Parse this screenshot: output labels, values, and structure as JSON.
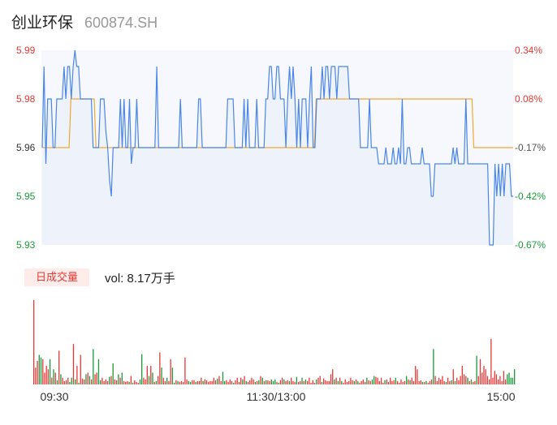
{
  "header": {
    "name": "创业环保",
    "code": "600874.SH"
  },
  "volume": {
    "badge_label": "日成交量",
    "text": "vol: 8.17万手"
  },
  "colors": {
    "price_line": "#4a86e8",
    "avg_line": "#f0a830",
    "up": "#e53935",
    "down": "#1a9a3a",
    "price_axis": "#e53935",
    "pct_up": "#e53935",
    "pct_flat": "#555555",
    "pct_down": "#1a9a3a"
  },
  "chart_data": [
    {
      "type": "line",
      "ylim": [
        5.93,
        5.99
      ],
      "y_tick_labels": [
        "5.99",
        "5.98",
        "5.96",
        "5.95",
        "5.93"
      ],
      "pct_tick_labels": [
        "0.34%",
        "0.08%",
        "-0.17%",
        "-0.42%",
        "-0.67%"
      ],
      "prev_close_marker": "5.96",
      "x_tick_labels": [
        "09:30",
        "11:30/13:00",
        "15:00"
      ],
      "series": [
        {
          "values": [
            5.96,
            5.985,
            5.955,
            5.975,
            5.975,
            5.975,
            5.96,
            5.96,
            5.975,
            5.975,
            5.975,
            5.975,
            5.985,
            5.975,
            5.985,
            5.985,
            5.975,
            5.985,
            5.99,
            5.985,
            5.985,
            5.975,
            5.975,
            5.975,
            5.975,
            5.975,
            5.975,
            5.975,
            5.96,
            5.96,
            5.96,
            5.96,
            5.975,
            5.975,
            5.975,
            5.965,
            5.96,
            5.95,
            5.945,
            5.96,
            5.96,
            5.96,
            5.96,
            5.975,
            5.96,
            5.975,
            5.96,
            5.96,
            5.975,
            5.955,
            5.96,
            5.96,
            5.975,
            5.96,
            5.96,
            5.96,
            5.96,
            5.96,
            5.96,
            5.96,
            5.96,
            5.96,
            5.96,
            5.985,
            5.96,
            5.96,
            5.96,
            5.96,
            5.96,
            5.96,
            5.96,
            5.96,
            5.96,
            5.96,
            5.96,
            5.96,
            5.975,
            5.96,
            5.96,
            5.96,
            5.96,
            5.96,
            5.96,
            5.96,
            5.96,
            5.96,
            5.975,
            5.975,
            5.96,
            5.96,
            5.96,
            5.96,
            5.96,
            5.96,
            5.96,
            5.96,
            5.96,
            5.96,
            5.96,
            5.96,
            5.96,
            5.96,
            5.975,
            5.975,
            5.975,
            5.975,
            5.96,
            5.96,
            5.96,
            5.96,
            5.96,
            5.975,
            5.96,
            5.975,
            5.96,
            5.96,
            5.96,
            5.96,
            5.975,
            5.96,
            5.96,
            5.96,
            5.96,
            5.975,
            5.975,
            5.985,
            5.985,
            5.975,
            5.975,
            5.985,
            5.985,
            5.975,
            5.975,
            5.975,
            5.96,
            5.975,
            5.985,
            5.975,
            5.985,
            5.975,
            5.96,
            5.975,
            5.96,
            5.975,
            5.975,
            5.975,
            5.96,
            5.975,
            5.985,
            5.96,
            5.96,
            5.975,
            5.975,
            5.975,
            5.985,
            5.975,
            5.985,
            5.985,
            5.975,
            5.985,
            5.985,
            5.985,
            5.975,
            5.985,
            5.985,
            5.985,
            5.985,
            5.985,
            5.985,
            5.975,
            5.975,
            5.975,
            5.975,
            5.975,
            5.975,
            5.96,
            5.96,
            5.96,
            5.96,
            5.96,
            5.975,
            5.96,
            5.96,
            5.96,
            5.96,
            5.955,
            5.955,
            5.955,
            5.955,
            5.96,
            5.955,
            5.955,
            5.955,
            5.96,
            5.955,
            5.955,
            5.96,
            5.955,
            5.975,
            5.955,
            5.955,
            5.96,
            5.96,
            5.955,
            5.955,
            5.955,
            5.955,
            5.955,
            5.955,
            5.96,
            5.955,
            5.955,
            5.955,
            5.955,
            5.945,
            5.945,
            5.955,
            5.955,
            5.955,
            5.955,
            5.955,
            5.955,
            5.955,
            5.955,
            5.955,
            5.955,
            5.96,
            5.955,
            5.96,
            5.955,
            5.955,
            5.955,
            5.955,
            5.975,
            5.955,
            5.955,
            5.955,
            5.955,
            5.955,
            5.955,
            5.955,
            5.955,
            5.955,
            5.955,
            5.955,
            5.955,
            5.93,
            5.93,
            5.93,
            5.955,
            5.945,
            5.955,
            5.945,
            5.955,
            5.945,
            5.955,
            5.955,
            5.955,
            5.945,
            5.945
          ]
        },
        {
          "values": [
            5.96,
            5.96,
            5.96,
            5.96,
            5.96,
            5.96,
            5.96,
            5.96,
            5.96,
            5.96,
            5.96,
            5.96,
            5.96,
            5.96,
            5.96,
            5.96,
            5.975,
            5.975,
            5.975,
            5.975,
            5.975,
            5.975,
            5.975,
            5.975,
            5.975,
            5.975,
            5.975,
            5.975,
            5.975,
            5.975,
            5.96,
            5.96,
            5.96,
            5.96,
            5.96,
            5.96,
            5.96,
            5.96,
            5.96,
            5.96,
            5.96,
            5.96,
            5.96,
            5.96,
            5.96,
            5.96,
            5.96,
            5.96,
            5.96,
            5.96,
            5.96,
            5.96,
            5.96,
            5.96,
            5.96,
            5.96,
            5.96,
            5.96,
            5.96,
            5.96,
            5.96,
            5.96,
            5.96,
            5.96,
            5.96,
            5.96,
            5.96,
            5.96,
            5.96,
            5.96,
            5.96,
            5.96,
            5.96,
            5.96,
            5.96,
            5.96,
            5.96,
            5.96,
            5.96,
            5.96,
            5.96,
            5.96,
            5.96,
            5.96,
            5.96,
            5.96,
            5.96,
            5.96,
            5.96,
            5.96,
            5.96,
            5.96,
            5.96,
            5.96,
            5.96,
            5.96,
            5.96,
            5.96,
            5.96,
            5.96,
            5.96,
            5.96,
            5.96,
            5.96,
            5.96,
            5.96,
            5.96,
            5.96,
            5.96,
            5.96,
            5.96,
            5.96,
            5.96,
            5.96,
            5.96,
            5.96,
            5.96,
            5.96,
            5.96,
            5.96,
            5.96,
            5.96,
            5.96,
            5.96,
            5.96,
            5.96,
            5.96,
            5.96,
            5.96,
            5.96,
            5.96,
            5.96,
            5.96,
            5.96,
            5.96,
            5.96,
            5.96,
            5.96,
            5.96,
            5.96,
            5.96,
            5.96,
            5.96,
            5.96,
            5.96,
            5.96,
            5.96,
            5.96,
            5.96,
            5.96,
            5.96,
            5.96,
            5.96,
            5.975,
            5.975,
            5.975,
            5.975,
            5.975,
            5.975,
            5.975,
            5.975,
            5.975,
            5.975,
            5.975,
            5.975,
            5.975,
            5.975,
            5.975,
            5.975,
            5.975,
            5.975,
            5.975,
            5.975,
            5.975,
            5.975,
            5.975,
            5.975,
            5.975,
            5.975,
            5.975,
            5.975,
            5.975,
            5.975,
            5.975,
            5.975,
            5.975,
            5.975,
            5.975,
            5.975,
            5.975,
            5.975,
            5.975,
            5.975,
            5.975,
            5.975,
            5.975,
            5.975,
            5.975,
            5.975,
            5.975,
            5.975,
            5.975,
            5.975,
            5.975,
            5.975,
            5.975,
            5.975,
            5.975,
            5.975,
            5.975,
            5.975,
            5.975,
            5.975,
            5.975,
            5.975,
            5.975,
            5.975,
            5.975,
            5.975,
            5.975,
            5.975,
            5.975,
            5.975,
            5.975,
            5.975,
            5.975,
            5.975,
            5.975,
            5.975,
            5.975,
            5.975,
            5.975,
            5.975,
            5.975,
            5.975,
            5.975,
            5.975,
            5.975,
            5.975,
            5.975,
            5.975,
            5.96,
            5.96,
            5.96,
            5.96,
            5.96,
            5.96,
            5.96,
            5.96,
            5.96,
            5.96,
            5.96,
            5.96,
            5.96,
            5.96,
            5.96,
            5.96,
            5.96,
            5.96,
            5.96,
            5.96,
            5.96,
            5.96,
            5.96
          ]
        }
      ]
    },
    {
      "type": "bar",
      "x_tick_labels": [
        "09:30",
        "11:30/13:00",
        "15:00"
      ],
      "bar_values": [
        100,
        20,
        28,
        35,
        32,
        30,
        14,
        22,
        18,
        30,
        8,
        18,
        14,
        5,
        40,
        12,
        8,
        4,
        5,
        8,
        3,
        8,
        48,
        6,
        22,
        2,
        35,
        7,
        6,
        12,
        14,
        10,
        6,
        42,
        12,
        14,
        30,
        5,
        8,
        4,
        6,
        4,
        9,
        10,
        25,
        6,
        5,
        12,
        8,
        14,
        4,
        3,
        4,
        3,
        10,
        2,
        5,
        3,
        2,
        6,
        36,
        8,
        6,
        22,
        10,
        22,
        14,
        3,
        4,
        10,
        38,
        20,
        8,
        4,
        8,
        4,
        30,
        20,
        2,
        5,
        4,
        3,
        4,
        3,
        32,
        6,
        4,
        3,
        5,
        5,
        3,
        4,
        4,
        8,
        4,
        6,
        5,
        3,
        4,
        4,
        8,
        5,
        7,
        10,
        4,
        15,
        4,
        5,
        3,
        6,
        4,
        2,
        5,
        8,
        3,
        8,
        6,
        10,
        4,
        3,
        5,
        8,
        6,
        3,
        4,
        5,
        10,
        8,
        4,
        5,
        5,
        4,
        6,
        4,
        6,
        3,
        2,
        5,
        8,
        6,
        4,
        5,
        4,
        8,
        4,
        3,
        9,
        3,
        4,
        8,
        4,
        6,
        4,
        8,
        2,
        5,
        2,
        6,
        8,
        10,
        3,
        7,
        5,
        4,
        4,
        12,
        18,
        6,
        8,
        4,
        8,
        4,
        2,
        6,
        3,
        4,
        8,
        5,
        4,
        6,
        4,
        2,
        4,
        6,
        3,
        8,
        5,
        4,
        6,
        10,
        9,
        8,
        4,
        8,
        2,
        5,
        6,
        3,
        8,
        4,
        5,
        8,
        4,
        2,
        6,
        3,
        4,
        10,
        6,
        5,
        8,
        4,
        22,
        18,
        4,
        5,
        3,
        3,
        4,
        2,
        4,
        6,
        42,
        10,
        4,
        8,
        6,
        10,
        4,
        3,
        8,
        4,
        5,
        18,
        4,
        8,
        5,
        10,
        22,
        12,
        10,
        8,
        4,
        6,
        3,
        4,
        34,
        10,
        30,
        14,
        22,
        18,
        10,
        6,
        54,
        8,
        16,
        12,
        6,
        10,
        4,
        16,
        6,
        12,
        14,
        8,
        8,
        18
      ],
      "bar_up": [
        1,
        1,
        1,
        0,
        0,
        1,
        1,
        1,
        1,
        0,
        1,
        0,
        1,
        0,
        1,
        0,
        1,
        1,
        1,
        1,
        0,
        0,
        1,
        0,
        1,
        0,
        1,
        1,
        1,
        0,
        1,
        0,
        1,
        0,
        1,
        1,
        0,
        0,
        1,
        1,
        1,
        1,
        0,
        1,
        0,
        1,
        1,
        0,
        1,
        0,
        1,
        1,
        1,
        0,
        1,
        0,
        1,
        1,
        1,
        0,
        0,
        1,
        1,
        1,
        0,
        1,
        0,
        1,
        0,
        1,
        1,
        0,
        1,
        1,
        0,
        1,
        1,
        0,
        0,
        1,
        0,
        1,
        1,
        1,
        1,
        1,
        0,
        0,
        1,
        1,
        0,
        1,
        1,
        1,
        0,
        1,
        1,
        1,
        1,
        1,
        1,
        1,
        0,
        1,
        1,
        0,
        0,
        1,
        1,
        1,
        1,
        0,
        1,
        1,
        1,
        1,
        0,
        1,
        0,
        1,
        1,
        1,
        1,
        0,
        1,
        0,
        1,
        0,
        1,
        0,
        1,
        1,
        0,
        0,
        0,
        1,
        0,
        1,
        1,
        0,
        1,
        1,
        0,
        1,
        1,
        1,
        0,
        1,
        1,
        0,
        1,
        0,
        1,
        1,
        1,
        1,
        1,
        0,
        1,
        1,
        0,
        1,
        1,
        1,
        1,
        1,
        1,
        0,
        1,
        0,
        1,
        0,
        1,
        1,
        1,
        1,
        1,
        1,
        0,
        1,
        0,
        1,
        1,
        1,
        1,
        0,
        1,
        1,
        0,
        0,
        1,
        1,
        1,
        1,
        1,
        0,
        1,
        1,
        1,
        1,
        1,
        0,
        1,
        1,
        1,
        1,
        1,
        0,
        1,
        0,
        1,
        1,
        1,
        1,
        1,
        1,
        0,
        1,
        0,
        1,
        1,
        1,
        0,
        1,
        1,
        1,
        1,
        1,
        1,
        0,
        1,
        1,
        0,
        1,
        0,
        1,
        1,
        1,
        1,
        1,
        1,
        0,
        1,
        0,
        1,
        1,
        0,
        1,
        1,
        1,
        1,
        1,
        1,
        1,
        1,
        1,
        1,
        1,
        1,
        1,
        1,
        1,
        1,
        0
      ]
    }
  ]
}
